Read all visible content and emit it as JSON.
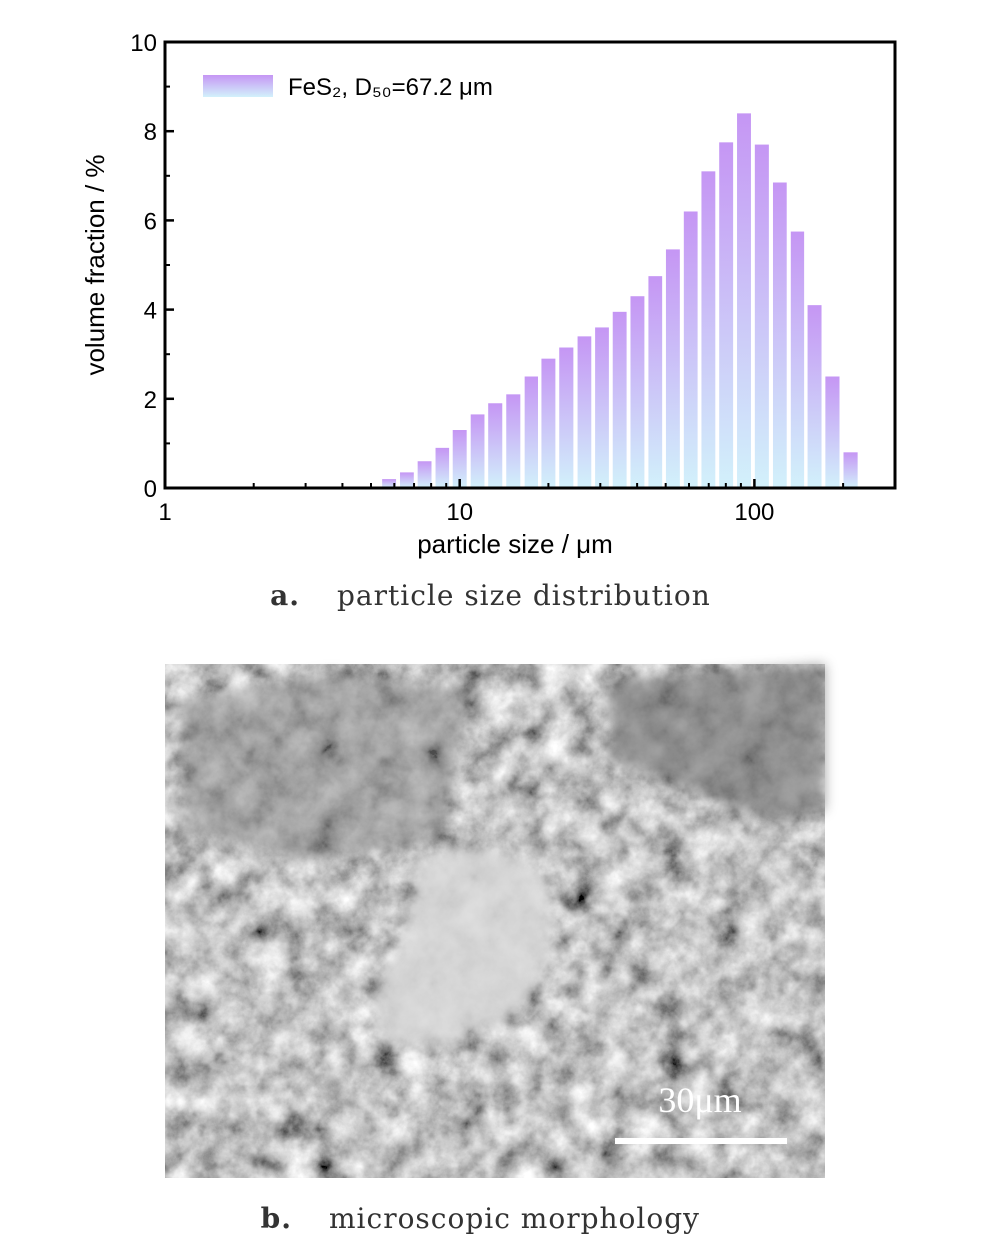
{
  "chart_data": {
    "type": "bar",
    "xlabel": "particle size / μm",
    "ylabel": "volume fraction / %",
    "xscale": "log",
    "xlim": [
      1,
      300
    ],
    "xticks": [
      1,
      10,
      100
    ],
    "xminorticks": [
      2,
      3,
      4,
      5,
      6,
      7,
      8,
      9,
      20,
      30,
      40,
      50,
      60,
      70,
      80,
      90,
      200,
      300
    ],
    "ylim": [
      0,
      10
    ],
    "yticks": [
      0,
      2,
      4,
      6,
      8,
      10
    ],
    "yminorticks": [
      1,
      3,
      5,
      7,
      9
    ],
    "legend": "upper left",
    "x": [
      5.76,
      6.62,
      7.6,
      8.73,
      10.0,
      11.5,
      13.2,
      15.2,
      17.5,
      20.0,
      23.0,
      26.5,
      30.4,
      34.9,
      40.1,
      46.1,
      52.9,
      60.8,
      69.8,
      80.2,
      92.2,
      106,
      122,
      140,
      160,
      184,
      212
    ],
    "series": [
      {
        "name": "FeS₂, D₅₀=67.2 μm",
        "color": "#c596f4",
        "color_bottom": "#d2f1fb",
        "values": [
          0.2,
          0.35,
          0.6,
          0.9,
          1.3,
          1.65,
          1.9,
          2.1,
          2.5,
          2.9,
          3.15,
          3.4,
          3.6,
          3.95,
          4.3,
          4.75,
          5.35,
          6.2,
          7.1,
          7.75,
          8.4,
          7.7,
          6.85,
          5.75,
          4.1,
          2.5,
          0.8
        ]
      }
    ]
  },
  "figure": {
    "captions": [
      {
        "label": "a.",
        "text": "particle size distribution"
      },
      {
        "label": "b.",
        "text": "microscopic morphology"
      }
    ],
    "scale_bar": "30μm"
  }
}
